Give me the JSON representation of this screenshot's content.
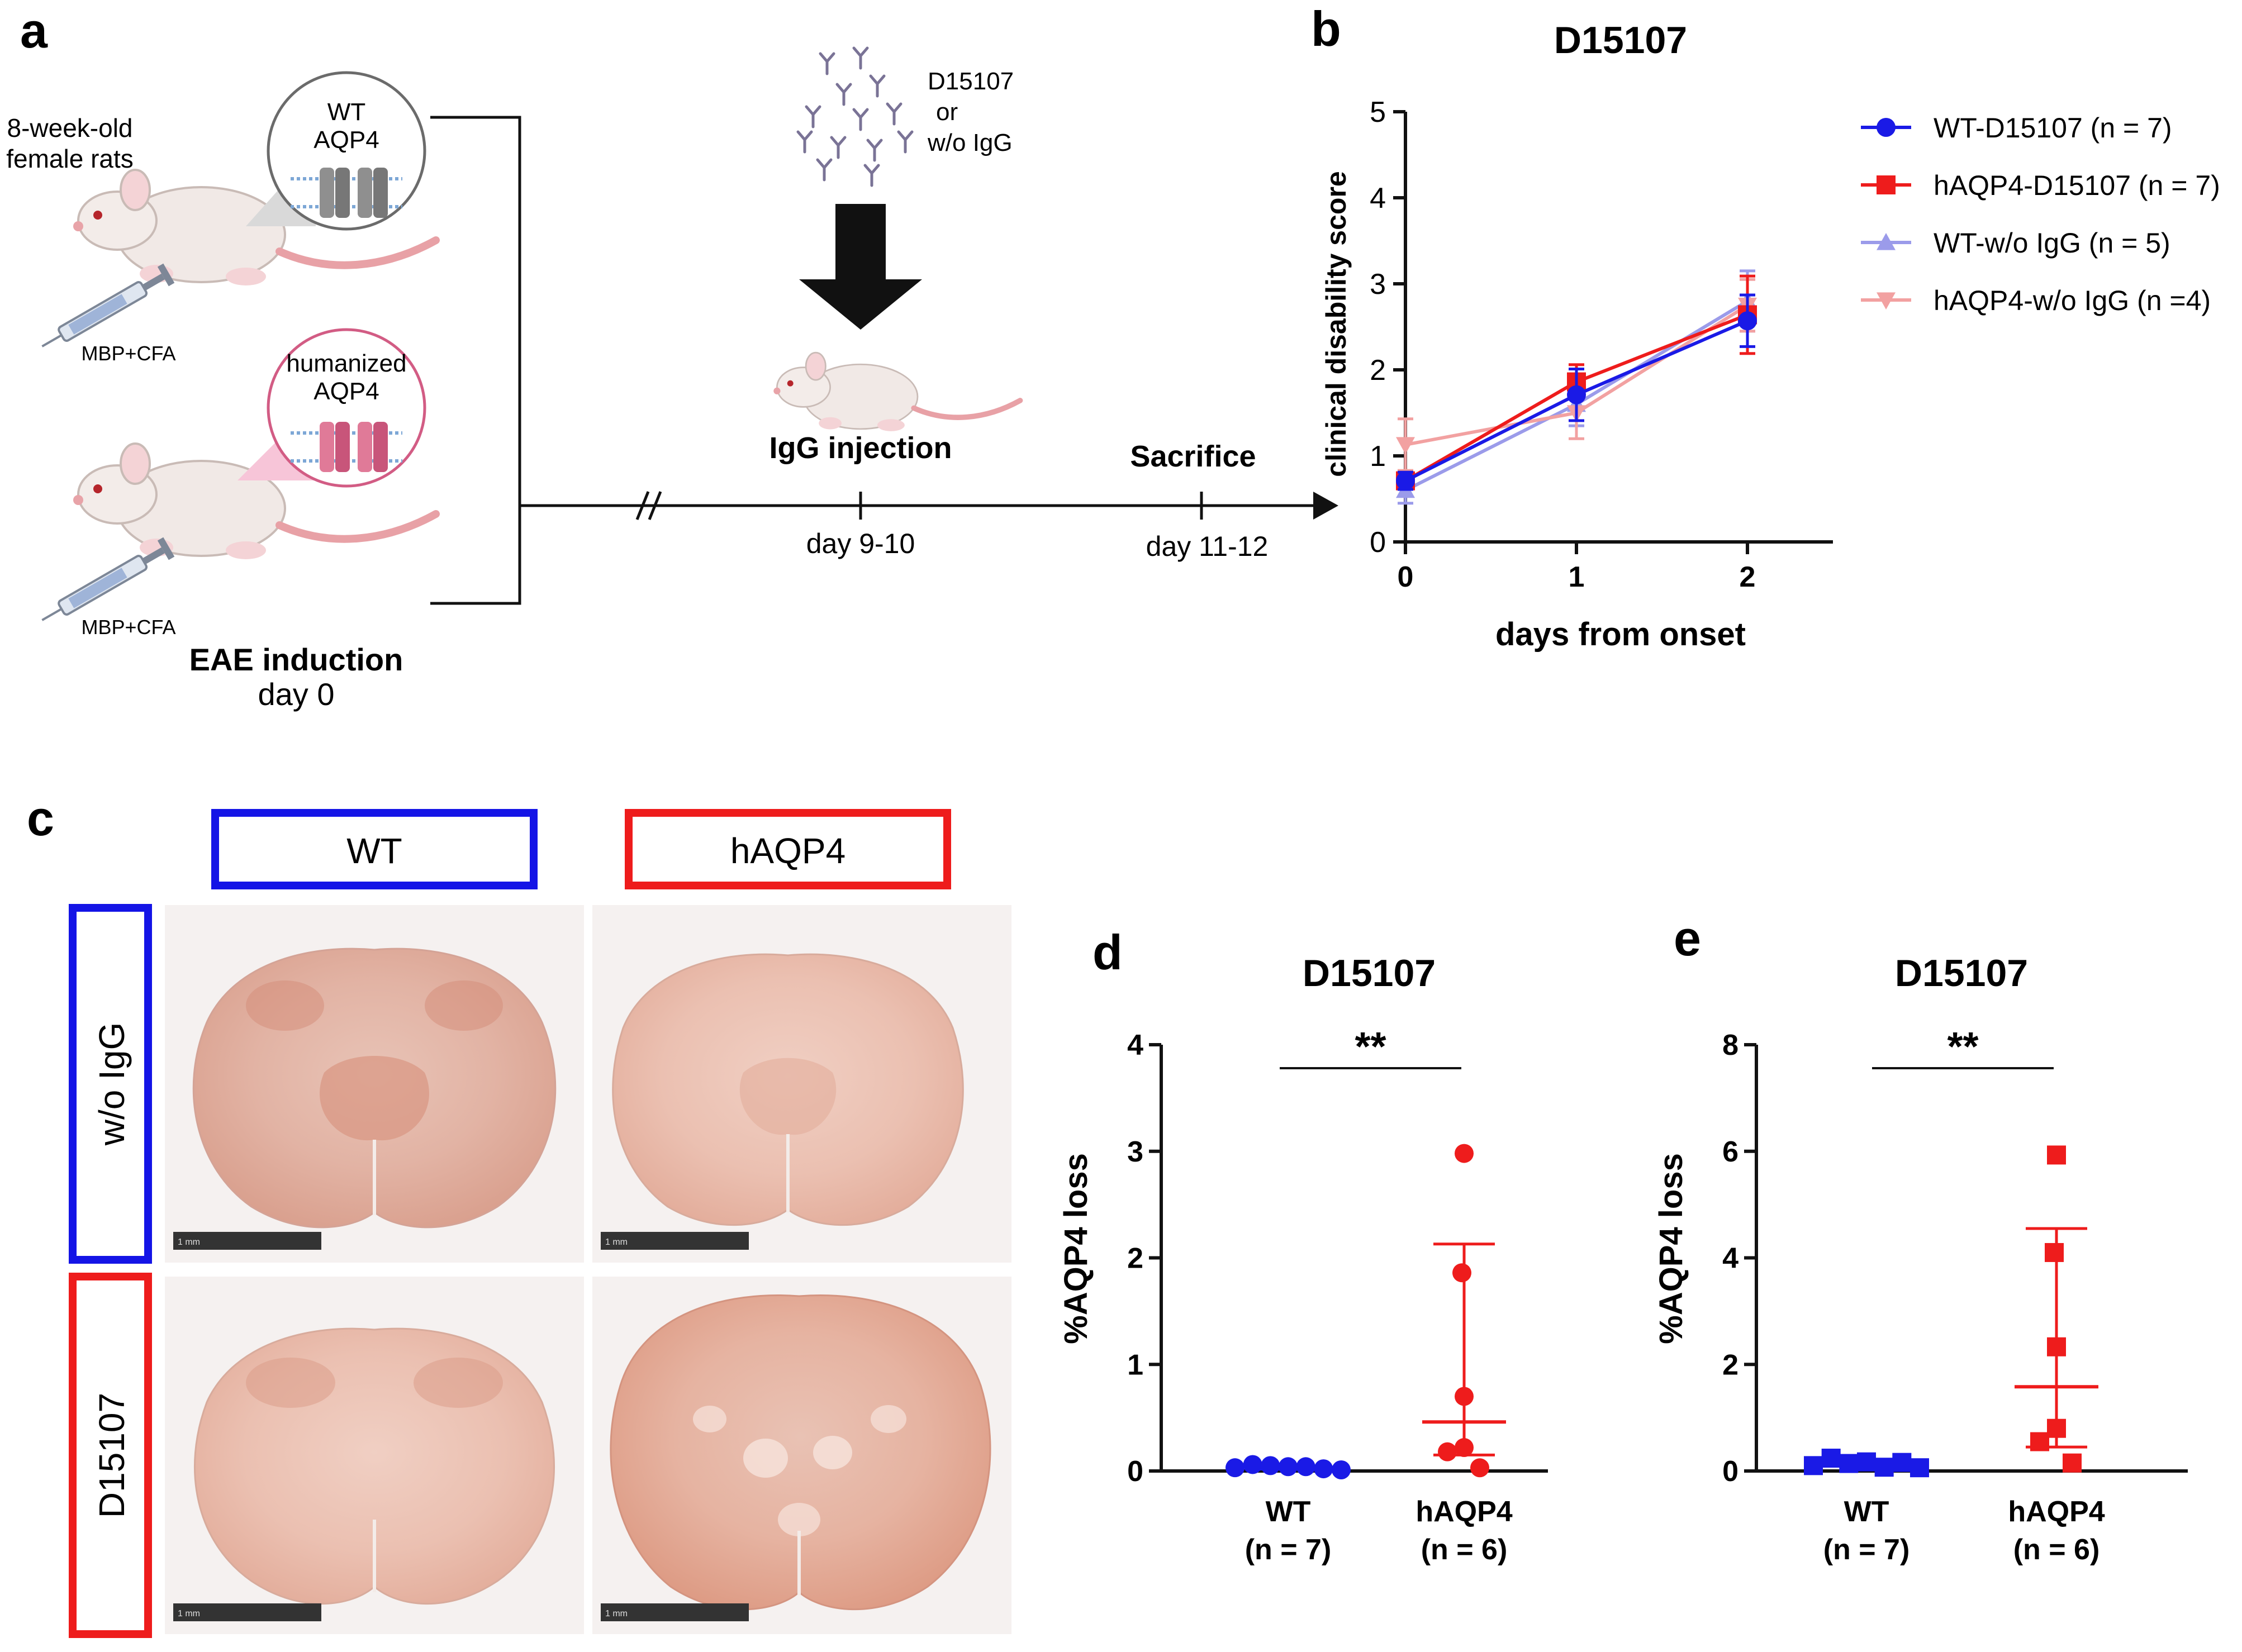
{
  "panel_labels": {
    "a": "a",
    "b": "b",
    "c": "c",
    "d": "d",
    "e": "e"
  },
  "panel_a": {
    "rats_label_line1": "8-week-old",
    "rats_label_line2": "female rats",
    "wt_circle_line1": "WT",
    "wt_circle_line2": "AQP4",
    "hum_circle_line1": "humanized",
    "hum_circle_line2": "AQP4",
    "mbp_label_top": "MBP+CFA",
    "mbp_label_bottom": "MBP+CFA",
    "eae_title": "EAE induction",
    "eae_day": "day 0",
    "igg_line1": "D15107",
    "igg_line2": "or",
    "igg_line3": "w/o IgG",
    "injection_title": "IgG injection",
    "injection_day": "day 9-10",
    "sacrifice_title": "Sacrifice",
    "sacrifice_day": "day 11-12",
    "colors": {
      "wt_channel": "#8f8f8f",
      "hum_channel": "#e07a98",
      "arrow": "#111111"
    }
  },
  "panel_c": {
    "col_wt": "WT",
    "col_haqp4": "hAQP4",
    "row_woigg": "w/o IgG",
    "row_d15107": "D15107",
    "scale_bar_label": "1 mm",
    "colors": {
      "wt": "#1414e6",
      "haqp4": "#ee1c1c"
    }
  },
  "chart_data": [
    {
      "type": "line",
      "title": "D15107",
      "xlabel": "days from onset",
      "ylabel": "clinical disability score",
      "x": [
        0,
        1,
        2
      ],
      "xlim": [
        0,
        2.5
      ],
      "ylim": [
        0,
        5
      ],
      "yticks": [
        0,
        1,
        2,
        3,
        4,
        5
      ],
      "legend": "right",
      "series": [
        {
          "name": "WT-D15107 (n = 7)",
          "marker": "circle",
          "color": "#1a1ae6",
          "values": [
            0.71,
            1.71,
            2.57
          ],
          "err": [
            0.1,
            0.3,
            0.3
          ]
        },
        {
          "name": "hAQP4-D15107 (n = 7)",
          "marker": "square",
          "color": "#ee1c1c",
          "values": [
            0.71,
            1.86,
            2.64
          ],
          "err": [
            0.1,
            0.2,
            0.45
          ]
        },
        {
          "name": "WT-w/o IgG (n = 5)",
          "marker": "triangle-up",
          "color": "#9b9bea",
          "values": [
            0.6,
            1.6,
            2.8
          ],
          "err": [
            0.15,
            0.25,
            0.35
          ]
        },
        {
          "name": "hAQP4-w/o IgG (n =4)",
          "marker": "triangle-down",
          "color": "#f2a1a1",
          "values": [
            1.13,
            1.5,
            2.75
          ],
          "err": [
            0.3,
            0.3,
            0.3
          ]
        }
      ]
    },
    {
      "type": "scatter",
      "title": "D15107",
      "ylabel": "%AQP4 loss",
      "ylim": [
        0,
        4
      ],
      "yticks": [
        0,
        1,
        2,
        3,
        4
      ],
      "marker": "circle",
      "significance": "**",
      "groups": [
        {
          "name": "WT",
          "n_label": "(n = 7)",
          "color": "#1a1ae6",
          "values": [
            0.02,
            0.05,
            0.04,
            0.03,
            0.03,
            0.01,
            0.0
          ],
          "median": 0.02
        },
        {
          "name": "hAQP4",
          "n_label": "(n = 6)",
          "color": "#ee1c1c",
          "values": [
            2.98,
            1.86,
            0.7,
            0.22,
            0.18,
            0.03
          ],
          "median": 0.46,
          "err_low": 0.15,
          "err_high": 2.13
        }
      ]
    },
    {
      "type": "scatter",
      "title": "D15107",
      "ylabel": "%AQP4 loss",
      "ylim": [
        0,
        8
      ],
      "yticks": [
        0,
        2,
        4,
        6,
        8
      ],
      "marker": "square",
      "significance": "**",
      "groups": [
        {
          "name": "WT",
          "n_label": "(n = 7)",
          "color": "#1a1ae6",
          "values": [
            0.08,
            0.22,
            0.12,
            0.15,
            0.05,
            0.14,
            0.04
          ],
          "median": 0.1
        },
        {
          "name": "hAQP4",
          "n_label": "(n = 6)",
          "color": "#ee1c1c",
          "values": [
            5.93,
            4.1,
            2.33,
            0.8,
            0.55,
            0.15
          ],
          "median": 1.58,
          "err_low": 0.45,
          "err_high": 4.55
        }
      ]
    }
  ]
}
